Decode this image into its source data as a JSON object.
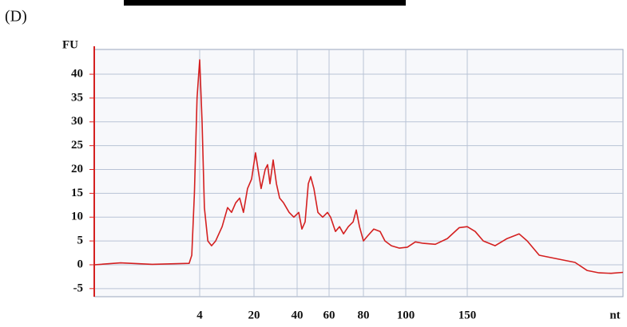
{
  "panel_label": "(D)",
  "chart_data": {
    "type": "line",
    "y_label": "FU",
    "x_label": "nt",
    "x": [
      0,
      1.0,
      2.2,
      3.6,
      3.7,
      3.8,
      3.9,
      4,
      4.7,
      5.4,
      6.4,
      7.5,
      8.7,
      10.6,
      12.2,
      13.4,
      14.6,
      15.8,
      16.9,
      18.1,
      19.3,
      20.7,
      21.9,
      23.3,
      25.2,
      26.3,
      27.4,
      28.9,
      30.4,
      31.9,
      33.7,
      36.3,
      38.5,
      41,
      43,
      45,
      47,
      48.5,
      50.5,
      53,
      56,
      59,
      60.9,
      63.7,
      66.1,
      68.4,
      71.2,
      74.0,
      75.8,
      77.7,
      80,
      81.9,
      84.9,
      87.9,
      90.2,
      93.2,
      97.0,
      101.3,
      107.8,
      114.3,
      124,
      133.8,
      143.5,
      150,
      155.1,
      160.3,
      167.9,
      175.6,
      183.3,
      188.5,
      196.2,
      203.8,
      211.5,
      219.2,
      226.9,
      234.6,
      242.3,
      250
    ],
    "values": [
      0,
      0.4,
      0.1,
      0.3,
      2,
      15,
      35,
      43,
      30,
      12,
      5,
      4,
      5,
      8,
      12,
      11,
      13,
      14,
      11,
      16,
      18,
      23.5,
      20,
      16,
      20,
      21,
      17,
      22,
      17,
      14,
      13,
      11,
      10,
      11,
      7.5,
      9,
      17,
      18.5,
      16,
      11,
      10,
      11,
      10,
      7,
      8,
      6.5,
      8,
      9,
      11.5,
      8,
      5,
      6,
      7.5,
      7,
      5,
      4,
      3.5,
      3.7,
      4.8,
      4.5,
      4.3,
      5.5,
      7.8,
      8,
      7,
      5,
      4,
      5.5,
      6.5,
      5,
      2,
      1.5,
      1,
      0.5,
      -1.2,
      -1.7,
      -1.8,
      -1.6
    ],
    "color": "#d42020",
    "xlim": [
      0,
      250
    ],
    "xticks": [
      4,
      20,
      40,
      60,
      80,
      100,
      150
    ],
    "ylim": [
      -6.7,
      45.2
    ],
    "yticks": [
      -5,
      0,
      5,
      10,
      15,
      20,
      25,
      30,
      35,
      40
    ],
    "grid": true
  }
}
